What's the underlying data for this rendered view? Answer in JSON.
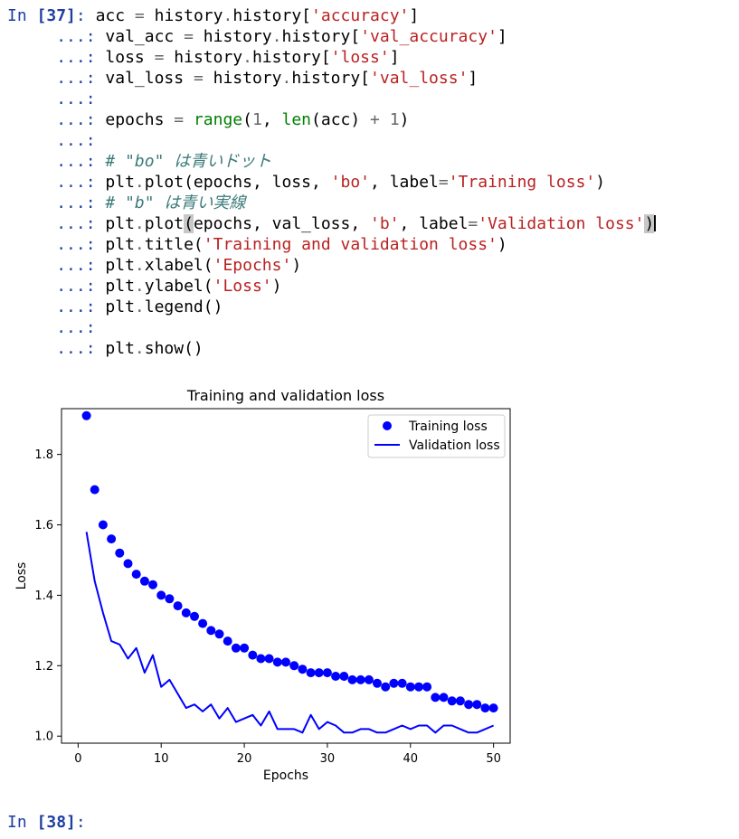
{
  "cell_in": {
    "prompt_label": "In ",
    "prompt_num": "[37]",
    "prompt_colon": ":",
    "cont_prompt": "...:"
  },
  "code": {
    "l1": [
      "acc ",
      "= ",
      "history",
      ".",
      "history[",
      "'accuracy'",
      "]"
    ],
    "l2": [
      "val_acc ",
      "= ",
      "history",
      ".",
      "history[",
      "'val_accuracy'",
      "]"
    ],
    "l3": [
      "loss ",
      "= ",
      "history",
      ".",
      "history[",
      "'loss'",
      "]"
    ],
    "l4": [
      "val_loss ",
      "= ",
      "history",
      ".",
      "history[",
      "'val_loss'",
      "]"
    ],
    "l6": [
      "epochs ",
      "= ",
      "range",
      "(",
      "1",
      ", ",
      "len",
      "(acc) ",
      "+ ",
      "1",
      ")"
    ],
    "l8": "# \"bo\" は青いドット",
    "l9": [
      "plt",
      ".",
      "plot(epochs, loss, ",
      "'bo'",
      ", label",
      "=",
      "'Training loss'",
      ")"
    ],
    "l10": "# \"b\" は青い実線",
    "l11": [
      "plt",
      ".",
      "plot",
      "(",
      "epochs, val_loss, ",
      "'b'",
      ", label",
      "=",
      "'Validation loss'",
      ")"
    ],
    "l12": [
      "plt",
      ".",
      "title(",
      "'Training and validation loss'",
      ")"
    ],
    "l13": [
      "plt",
      ".",
      "xlabel(",
      "'Epochs'",
      ")"
    ],
    "l14": [
      "plt",
      ".",
      "ylabel(",
      "'Loss'",
      ")"
    ],
    "l15": [
      "plt",
      ".",
      "legend()"
    ],
    "l17": [
      "plt",
      ".",
      "show()"
    ]
  },
  "next_cell": {
    "prompt_label": "In ",
    "prompt_num": "[38]",
    "prompt_colon": ":"
  },
  "colors": {
    "series": "#0000ff",
    "prompt": "#1f3fa0",
    "string": "#ba2121",
    "builtin": "#008000",
    "comment": "#3d7b7b"
  },
  "chart_data": {
    "type": "line",
    "title": "Training and validation loss",
    "xlabel": "Epochs",
    "ylabel": "Loss",
    "xlim": [
      -2,
      52
    ],
    "ylim": [
      0.98,
      1.93
    ],
    "xticks": [
      0,
      10,
      20,
      30,
      40,
      50
    ],
    "yticks": [
      1.0,
      1.2,
      1.4,
      1.6,
      1.8
    ],
    "ytick_labels": [
      "1.0",
      "1.2",
      "1.4",
      "1.6",
      "1.8"
    ],
    "legend_position": "top-right",
    "x": [
      1,
      2,
      3,
      4,
      5,
      6,
      7,
      8,
      9,
      10,
      11,
      12,
      13,
      14,
      15,
      16,
      17,
      18,
      19,
      20,
      21,
      22,
      23,
      24,
      25,
      26,
      27,
      28,
      29,
      30,
      31,
      32,
      33,
      34,
      35,
      36,
      37,
      38,
      39,
      40,
      41,
      42,
      43,
      44,
      45,
      46,
      47,
      48,
      49,
      50
    ],
    "series": [
      {
        "name": "Training loss",
        "style": "dots",
        "values": [
          1.91,
          1.7,
          1.6,
          1.56,
          1.52,
          1.49,
          1.46,
          1.44,
          1.43,
          1.4,
          1.39,
          1.37,
          1.35,
          1.34,
          1.32,
          1.3,
          1.29,
          1.27,
          1.25,
          1.25,
          1.23,
          1.22,
          1.22,
          1.21,
          1.21,
          1.2,
          1.19,
          1.18,
          1.18,
          1.18,
          1.17,
          1.17,
          1.16,
          1.16,
          1.16,
          1.15,
          1.14,
          1.15,
          1.15,
          1.14,
          1.14,
          1.14,
          1.11,
          1.11,
          1.1,
          1.1,
          1.09,
          1.09,
          1.08,
          1.08
        ]
      },
      {
        "name": "Validation loss",
        "style": "line",
        "values": [
          1.58,
          1.44,
          1.35,
          1.27,
          1.26,
          1.22,
          1.25,
          1.18,
          1.23,
          1.14,
          1.16,
          1.12,
          1.08,
          1.09,
          1.07,
          1.09,
          1.05,
          1.08,
          1.04,
          1.05,
          1.06,
          1.03,
          1.07,
          1.02,
          1.02,
          1.02,
          1.01,
          1.06,
          1.02,
          1.04,
          1.03,
          1.01,
          1.01,
          1.02,
          1.02,
          1.01,
          1.01,
          1.02,
          1.03,
          1.02,
          1.03,
          1.03,
          1.01,
          1.03,
          1.03,
          1.02,
          1.01,
          1.01,
          1.02,
          1.03
        ]
      }
    ]
  }
}
